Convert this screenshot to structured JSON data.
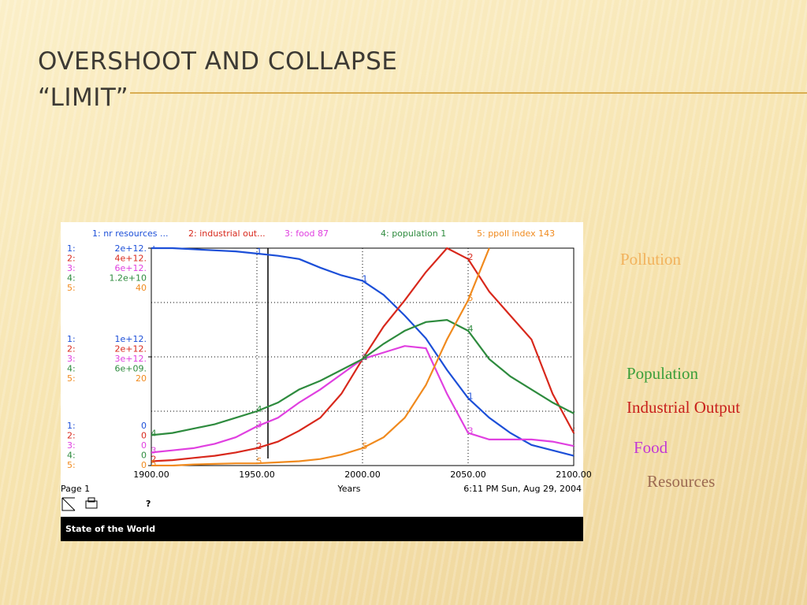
{
  "slide": {
    "title_lines": [
      "OVERSHOOT AND COLLAPSE",
      "“LIMIT”"
    ],
    "side_labels": [
      {
        "text": "Pollution",
        "color": "#f2b25c"
      },
      {
        "text": "Population",
        "color": "#3a9e3a"
      },
      {
        "text": "Industrial Output",
        "color": "#c8201c"
      },
      {
        "text": "Food",
        "color": "#c238d4"
      },
      {
        "text": "Resources",
        "color": "#9c6a52"
      }
    ]
  },
  "chart_data": {
    "type": "line",
    "x": [
      1900,
      1910,
      1920,
      1930,
      1940,
      1950,
      1960,
      1970,
      1980,
      1990,
      2000,
      2010,
      2020,
      2030,
      2040,
      2050,
      2060,
      2070,
      2080,
      2090,
      2100
    ],
    "xlim": [
      1900,
      2100
    ],
    "xticks": [
      {
        "value": 1900,
        "label": "1900.00"
      },
      {
        "value": 1950,
        "label": "1950.00"
      },
      {
        "value": 2000,
        "label": "2000.00"
      },
      {
        "value": 2050,
        "label": "2050.00"
      },
      {
        "value": 2100,
        "label": "2100.00"
      }
    ],
    "xlabel": "Years",
    "timestamp": "6:11 PM   Sun, Aug 29, 2004",
    "page_label": "Page 1",
    "help_icon": "?",
    "footer": "State of the World",
    "grid": true,
    "series": [
      {
        "name": "1: nr resources ...",
        "marker": "1",
        "axis_key": "1:",
        "color": "#1c4fd8",
        "ylim": [
          0,
          2000000000000.0
        ],
        "yticks": [
          0,
          {
            "value": 1000000000000.0,
            "label": "1e+12."
          },
          {
            "value": 2000000000000.0,
            "label": "2e+12."
          }
        ],
        "values": [
          2000000000000.0,
          2000000000000.0,
          1990000000000.0,
          1980000000000.0,
          1970000000000.0,
          1950000000000.0,
          1930000000000.0,
          1900000000000.0,
          1820000000000.0,
          1750000000000.0,
          1700000000000.0,
          1570000000000.0,
          1380000000000.0,
          1170000000000.0,
          880000000000.0,
          620000000000.0,
          440000000000.0,
          300000000000.0,
          190000000000.0,
          140000000000.0,
          90000000000.0
        ]
      },
      {
        "name": "2: industrial out...",
        "marker": "2",
        "axis_key": "2:",
        "color": "#d8281c",
        "ylim": [
          0,
          4000000000000.0
        ],
        "yticks": [
          0,
          {
            "value": 2000000000000.0,
            "label": "2e+12."
          },
          {
            "value": 4000000000000.0,
            "label": "4e+12."
          }
        ],
        "values": [
          80000000000.0,
          100000000000.0,
          140000000000.0,
          180000000000.0,
          240000000000.0,
          320000000000.0,
          440000000000.0,
          640000000000.0,
          880000000000.0,
          1320000000000.0,
          1960000000000.0,
          2560000000000.0,
          3040000000000.0,
          3560000000000.0,
          4000000000000.0,
          3800000000000.0,
          3200000000000.0,
          2760000000000.0,
          2320000000000.0,
          1320000000000.0,
          600000000000.0
        ]
      },
      {
        "name": "3: food 87",
        "marker": "3",
        "axis_key": "3:",
        "color": "#e040e0",
        "ylim": [
          0,
          6000000000000.0
        ],
        "yticks": [
          0,
          {
            "value": 3000000000000.0,
            "label": "3e+12."
          },
          {
            "value": 6000000000000.0,
            "label": "6e+12."
          }
        ],
        "values": [
          360000000000.0,
          420000000000.0,
          480000000000.0,
          600000000000.0,
          780000000000.0,
          1080000000000.0,
          1320000000000.0,
          1740000000000.0,
          2100000000000.0,
          2520000000000.0,
          2940000000000.0,
          3120000000000.0,
          3300000000000.0,
          3240000000000.0,
          1980000000000.0,
          900000000000.0,
          720000000000.0,
          720000000000.0,
          720000000000.0,
          660000000000.0,
          540000000000.0
        ]
      },
      {
        "name": "4: population 1",
        "marker": "4",
        "axis_key": "4:",
        "color": "#2e8b3e",
        "ylim": [
          0,
          12000000000.0
        ],
        "yticks": [
          0,
          {
            "value": 6000000000.0,
            "label": "6e+09."
          },
          {
            "value": 12000000000.0,
            "label": "1.2e+10"
          }
        ],
        "values": [
          1680000000.0,
          1800000000.0,
          2040000000.0,
          2280000000.0,
          2640000000.0,
          3000000000.0,
          3480000000.0,
          4200000000.0,
          4680000000.0,
          5280000000.0,
          5880000000.0,
          6720000000.0,
          7440000000.0,
          7920000000.0,
          8040000000.0,
          7440000000.0,
          5880000000.0,
          4920000000.0,
          4200000000.0,
          3480000000.0,
          2880000000.0
        ]
      },
      {
        "name": "5: ppoll index 143",
        "marker": "5",
        "axis_key": "5:",
        "color": "#f08a1e",
        "ylim": [
          0,
          40
        ],
        "yticks": [
          0,
          20,
          40
        ],
        "values": [
          0,
          0,
          0.2,
          0.3,
          0.4,
          0.4,
          0.6,
          0.8,
          1.2,
          2,
          3.2,
          5.2,
          8.8,
          14.8,
          23.2,
          30.4,
          40,
          null,
          null,
          null,
          null
        ]
      }
    ]
  }
}
